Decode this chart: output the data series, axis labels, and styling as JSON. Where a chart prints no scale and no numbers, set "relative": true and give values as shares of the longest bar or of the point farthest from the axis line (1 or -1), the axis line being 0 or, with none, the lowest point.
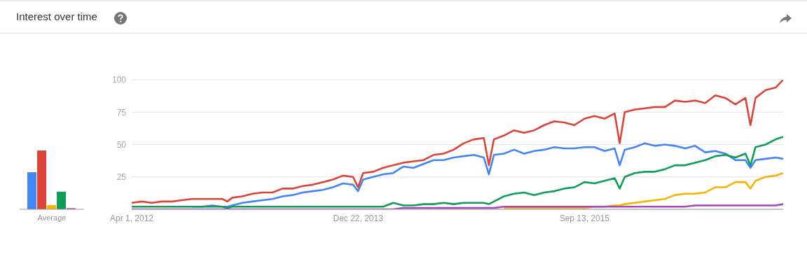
{
  "chart_data": [
    {
      "type": "bar",
      "relative": true,
      "categories": [
        "Average"
      ],
      "series": [
        {
          "color": "#4285f4",
          "values": [
            0.63
          ]
        },
        {
          "color": "#db4437",
          "values": [
            1
          ]
        },
        {
          "color": "#f4b400",
          "values": [
            0.07
          ]
        },
        {
          "color": "#0f9d58",
          "values": [
            0.3
          ]
        },
        {
          "color": "#ab47bc",
          "values": [
            0.02
          ]
        }
      ]
    },
    {
      "type": "line",
      "title": "Interest over time",
      "grid": "y",
      "ylim": [
        0,
        100
      ],
      "yticks": [
        25,
        50,
        75,
        100
      ],
      "xlim": [
        "2012-04-01",
        "2017-03-19"
      ],
      "xticks": [
        {
          "value": "2012-04-01",
          "label": "Apr 1, 2012"
        },
        {
          "value": "2013-12-22",
          "label": "Dec 22, 2013"
        },
        {
          "value": "2015-09-13",
          "label": "Sep 13, 2015"
        }
      ],
      "x": [
        "2012-04-01",
        "2012-04-29",
        "2012-05-27",
        "2012-06-24",
        "2012-07-22",
        "2012-08-19",
        "2012-09-16",
        "2012-10-14",
        "2012-11-11",
        "2012-12-09",
        "2012-12-23",
        "2013-01-06",
        "2013-02-03",
        "2013-03-03",
        "2013-03-31",
        "2013-04-28",
        "2013-05-26",
        "2013-06-23",
        "2013-07-21",
        "2013-08-18",
        "2013-09-15",
        "2013-10-13",
        "2013-11-10",
        "2013-12-08",
        "2013-12-22",
        "2014-01-05",
        "2014-02-02",
        "2014-03-02",
        "2014-03-30",
        "2014-04-27",
        "2014-05-25",
        "2014-06-22",
        "2014-07-20",
        "2014-08-17",
        "2014-09-14",
        "2014-10-12",
        "2014-11-09",
        "2014-12-07",
        "2014-12-21",
        "2015-01-04",
        "2015-02-01",
        "2015-03-01",
        "2015-03-29",
        "2015-04-26",
        "2015-05-24",
        "2015-06-21",
        "2015-07-19",
        "2015-08-16",
        "2015-09-13",
        "2015-10-11",
        "2015-11-08",
        "2015-12-06",
        "2015-12-20",
        "2016-01-03",
        "2016-01-31",
        "2016-02-28",
        "2016-03-27",
        "2016-04-24",
        "2016-05-22",
        "2016-06-19",
        "2016-07-17",
        "2016-08-14",
        "2016-09-11",
        "2016-10-09",
        "2016-11-06",
        "2016-12-04",
        "2016-12-18",
        "2017-01-01",
        "2017-01-29",
        "2017-02-26",
        "2017-03-19"
      ],
      "series": [
        {
          "color": "#4285f4",
          "values": [
            null,
            null,
            null,
            null,
            null,
            null,
            2,
            2,
            3,
            2,
            2,
            3,
            5,
            6,
            7,
            8,
            10,
            11,
            13,
            14,
            15,
            17,
            20,
            19,
            14,
            23,
            25,
            27,
            28,
            33,
            32,
            35,
            38,
            38,
            40,
            41,
            42,
            40,
            27,
            42,
            43,
            46,
            43,
            45,
            46,
            48,
            47,
            47,
            48,
            48,
            45,
            47,
            34,
            46,
            48,
            51,
            49,
            50,
            49,
            47,
            49,
            44,
            45,
            43,
            38,
            38,
            32,
            38,
            39,
            40,
            39
          ]
        },
        {
          "color": "#db4437",
          "values": [
            5,
            6,
            5,
            6,
            6,
            7,
            8,
            8,
            8,
            8,
            6,
            9,
            10,
            12,
            13,
            13,
            16,
            16,
            18,
            19,
            21,
            23,
            26,
            25,
            17,
            28,
            29,
            32,
            34,
            36,
            37,
            38,
            42,
            43,
            46,
            51,
            54,
            55,
            34,
            54,
            57,
            61,
            59,
            61,
            65,
            68,
            67,
            65,
            70,
            72,
            70,
            74,
            51,
            75,
            77,
            78,
            79,
            79,
            84,
            83,
            84,
            82,
            88,
            86,
            81,
            86,
            65,
            86,
            92,
            94,
            100
          ]
        },
        {
          "color": "#f4b400",
          "values": [
            null,
            null,
            null,
            null,
            null,
            null,
            null,
            null,
            null,
            null,
            null,
            null,
            null,
            null,
            null,
            null,
            null,
            null,
            null,
            null,
            null,
            null,
            null,
            null,
            null,
            null,
            null,
            null,
            null,
            null,
            null,
            null,
            null,
            null,
            null,
            null,
            null,
            null,
            null,
            null,
            1,
            1,
            1,
            1,
            1,
            1,
            1,
            1,
            1,
            2,
            2,
            3,
            3,
            4,
            5,
            6,
            7,
            8,
            11,
            12,
            12,
            13,
            17,
            17,
            21,
            21,
            16,
            22,
            25,
            26,
            28
          ]
        },
        {
          "color": "#0f9d58",
          "values": [
            2,
            2,
            2,
            2,
            2,
            2,
            2,
            2,
            2,
            2,
            1,
            2,
            2,
            2,
            2,
            2,
            2,
            2,
            2,
            2,
            2,
            2,
            2,
            2,
            2,
            2,
            2,
            2,
            5,
            3,
            3,
            4,
            4,
            5,
            4,
            5,
            5,
            5,
            4,
            6,
            10,
            12,
            13,
            11,
            13,
            14,
            16,
            17,
            21,
            20,
            22,
            24,
            16,
            25,
            28,
            29,
            29,
            31,
            34,
            34,
            36,
            38,
            41,
            42,
            40,
            43,
            34,
            48,
            50,
            54,
            56
          ]
        },
        {
          "color": "#ab47bc",
          "values": [
            0,
            0,
            0,
            0,
            0,
            0,
            0,
            0,
            0,
            0,
            0,
            0,
            0,
            0,
            0,
            0,
            0,
            0,
            0,
            0,
            0,
            0,
            0,
            0,
            0,
            0,
            0,
            0,
            0,
            1,
            1,
            1,
            1,
            1,
            1,
            1,
            1,
            1,
            1,
            1,
            2,
            2,
            2,
            2,
            2,
            2,
            2,
            2,
            2,
            2,
            2,
            2,
            2,
            2,
            2,
            2,
            2,
            2,
            2,
            2,
            3,
            3,
            3,
            3,
            3,
            3,
            3,
            3,
            3,
            3,
            4
          ]
        }
      ]
    }
  ]
}
